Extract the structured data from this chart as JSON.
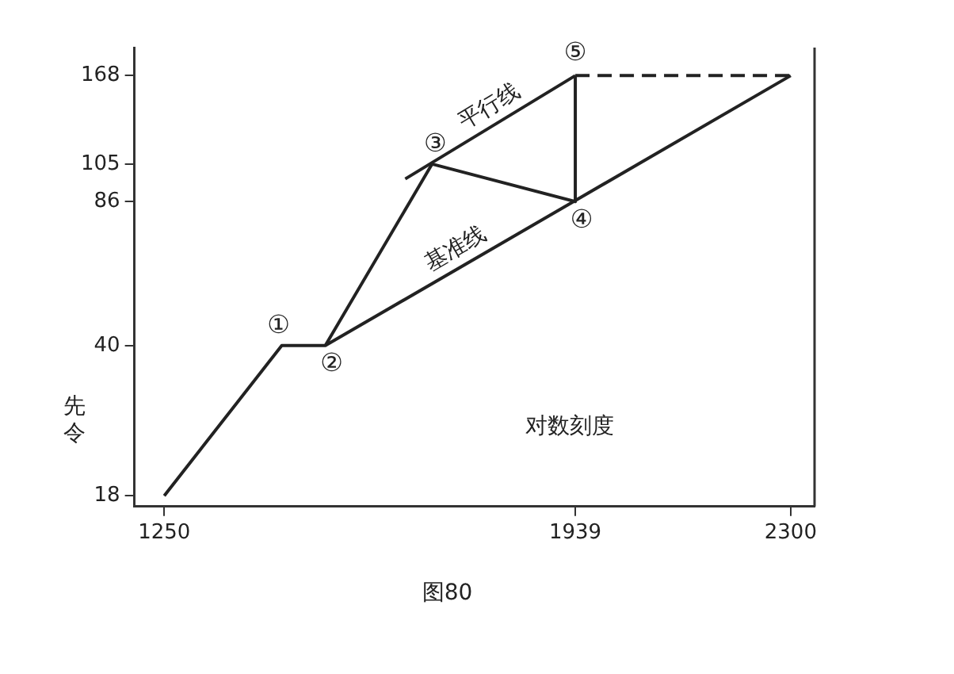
{
  "chart_data": {
    "type": "line",
    "log": "y",
    "grid": false,
    "legend": false,
    "marker": "none",
    "ylabel": "先令",
    "xlim": [
      1200,
      2340
    ],
    "xticks": [
      1250,
      1939,
      2300
    ],
    "ylim": [
      17,
      195
    ],
    "yticks": [
      18,
      40,
      86,
      105,
      168
    ],
    "series": [
      {
        "color": "#222222",
        "x": [
          1250,
          1447,
          1520,
          1699,
          1939,
          1939
        ],
        "values": [
          18,
          40,
          40,
          105,
          86,
          168
        ]
      },
      {
        "name": "基准线",
        "color": "#222222",
        "x": [
          1520,
          2300
        ],
        "values": [
          40,
          168
        ]
      },
      {
        "name": "平行线",
        "color": "#222222",
        "x": [
          1654,
          1939
        ],
        "values": [
          97,
          168
        ]
      },
      {
        "color": "#222222",
        "x": [
          1939,
          2300
        ],
        "values": [
          168,
          168
        ],
        "line_style": "dashed"
      }
    ],
    "annotations": [
      {
        "text": "①",
        "x": 1447,
        "y": 40
      },
      {
        "text": "②",
        "x": 1520,
        "y": 40
      },
      {
        "text": "③",
        "x": 1699,
        "y": 105
      },
      {
        "text": "④",
        "x": 1939,
        "y": 86
      },
      {
        "text": "⑤",
        "x": 1939,
        "y": 168
      },
      "对数刻度",
      "图80"
    ]
  }
}
